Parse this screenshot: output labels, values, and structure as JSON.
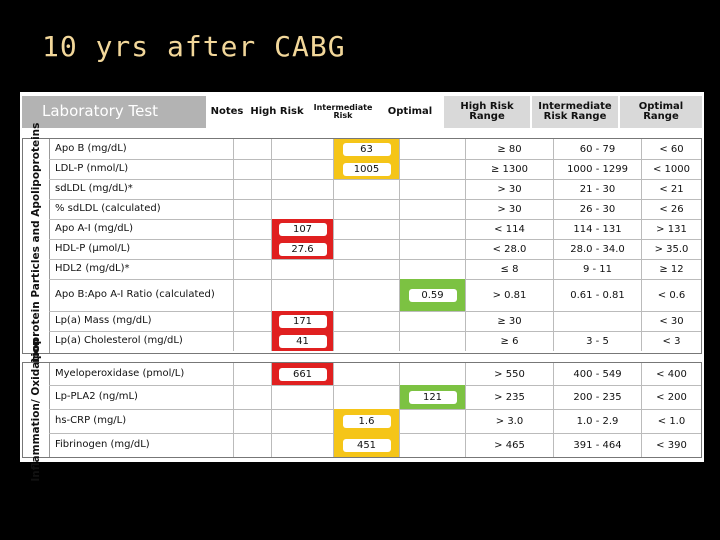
{
  "title": "10 yrs after CABG",
  "header": {
    "laboratory_test": "Laboratory Test",
    "notes": "Notes",
    "high_risk": "High Risk",
    "intermediate_risk": "Intermediate Risk",
    "optimal": "Optimal",
    "high_risk_range": "High Risk Range",
    "intermediate_risk_range": "Intermediate Risk Range",
    "optimal_range": "Optimal Range"
  },
  "sections": [
    {
      "label": "Lipoprotein Particles and Apolipoproteins",
      "rows": [
        {
          "test": "Apo B (mg/dL)",
          "high": "",
          "inter": "63",
          "opt": "",
          "rh": "≥ 80",
          "ri": "60 - 79",
          "ro": "< 60"
        },
        {
          "test": "LDL-P (nmol/L)",
          "high": "",
          "inter": "1005",
          "opt": "",
          "rh": "≥ 1300",
          "ri": "1000 - 1299",
          "ro": "< 1000"
        },
        {
          "test": "sdLDL (mg/dL)*",
          "high": "",
          "inter": "",
          "opt": "",
          "rh": "> 30",
          "ri": "21 - 30",
          "ro": "< 21"
        },
        {
          "test": "% sdLDL (calculated)",
          "high": "",
          "inter": "",
          "opt": "",
          "rh": "> 30",
          "ri": "26 - 30",
          "ro": "< 26"
        },
        {
          "test": "Apo A-I (mg/dL)",
          "high": "107",
          "inter": "",
          "opt": "",
          "rh": "< 114",
          "ri": "114 - 131",
          "ro": "> 131"
        },
        {
          "test": "HDL-P (µmol/L)",
          "high": "27.6",
          "inter": "",
          "opt": "",
          "rh": "< 28.0",
          "ri": "28.0 - 34.0",
          "ro": "> 35.0"
        },
        {
          "test": "HDL2 (mg/dL)*",
          "high": "",
          "inter": "",
          "opt": "",
          "rh": "≤ 8",
          "ri": "9 - 11",
          "ro": "≥ 12"
        },
        {
          "test": "Apo B:Apo A-I Ratio (calculated)",
          "high": "",
          "inter": "",
          "opt": "0.59",
          "rh": "> 0.81",
          "ri": "0.61 - 0.81",
          "ro": "< 0.6"
        },
        {
          "test": "Lp(a) Mass (mg/dL)",
          "high": "171",
          "inter": "",
          "opt": "",
          "rh": "≥ 30",
          "ri": "",
          "ro": "< 30"
        },
        {
          "test": "Lp(a) Cholesterol (mg/dL)",
          "high": "41",
          "inter": "",
          "opt": "",
          "rh": "≥ 6",
          "ri": "3 - 5",
          "ro": "< 3"
        }
      ]
    },
    {
      "label": "Inflammation/ Oxidation",
      "rows": [
        {
          "test": "Myeloperoxidase (pmol/L)",
          "high": "661",
          "inter": "",
          "opt": "",
          "rh": "> 550",
          "ri": "400 - 549",
          "ro": "< 400"
        },
        {
          "test": "Lp-PLA2 (ng/mL)",
          "high": "",
          "inter": "",
          "opt": "121",
          "rh": "> 235",
          "ri": "200 - 235",
          "ro": "< 200"
        },
        {
          "test": "hs-CRP (mg/L)",
          "high": "",
          "inter": "1.6",
          "opt": "",
          "rh": "> 3.0",
          "ri": "1.0 - 2.9",
          "ro": "< 1.0"
        },
        {
          "test": "Fibrinogen (mg/dL)",
          "high": "",
          "inter": "451",
          "opt": "",
          "rh": "> 465",
          "ri": "391 - 464",
          "ro": "< 390"
        }
      ]
    }
  ],
  "colors": {
    "high": "#e02020",
    "intermediate": "#f5c518",
    "optimal": "#7cc242",
    "title": "#f2d79a"
  }
}
